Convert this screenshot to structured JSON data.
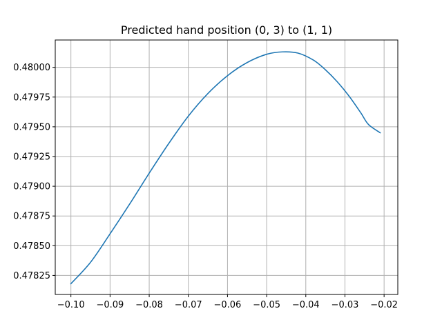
{
  "chart_data": {
    "type": "line",
    "title": "Predicted hand position (0, 3) to (1, 1)",
    "xlabel": "",
    "ylabel": "",
    "xlim": [
      -0.104,
      -0.0165
    ],
    "ylim": [
      0.47809,
      0.48023
    ],
    "grid": true,
    "x_ticks": [
      -0.1,
      -0.09,
      -0.08,
      -0.07,
      -0.06,
      -0.05,
      -0.04,
      -0.03,
      -0.02
    ],
    "x_tick_labels": [
      "−0.10",
      "−0.09",
      "−0.08",
      "−0.07",
      "−0.06",
      "−0.05",
      "−0.04",
      "−0.03",
      "−0.02"
    ],
    "y_ticks": [
      0.47825,
      0.4785,
      0.47875,
      0.479,
      0.47925,
      0.4795,
      0.47975,
      0.48
    ],
    "y_tick_labels": [
      "0.47825",
      "0.47850",
      "0.47875",
      "0.47900",
      "0.47925",
      "0.47950",
      "0.47975",
      "0.48000"
    ],
    "series": [
      {
        "color": "#1f77b4",
        "x": [
          -0.1,
          -0.095,
          -0.09,
          -0.085,
          -0.08,
          -0.075,
          -0.07,
          -0.065,
          -0.06,
          -0.055,
          -0.05,
          -0.046,
          -0.042,
          -0.038,
          -0.035,
          -0.032,
          -0.029,
          -0.026,
          -0.024,
          -0.021
        ],
        "y": [
          0.47818,
          0.47836,
          0.4786,
          0.47885,
          0.47911,
          0.47936,
          0.47959,
          0.47978,
          0.47993,
          0.48004,
          0.48011,
          0.48013,
          0.48012,
          0.48006,
          0.47998,
          0.47988,
          0.47976,
          0.47962,
          0.47952,
          0.47945
        ]
      }
    ]
  }
}
